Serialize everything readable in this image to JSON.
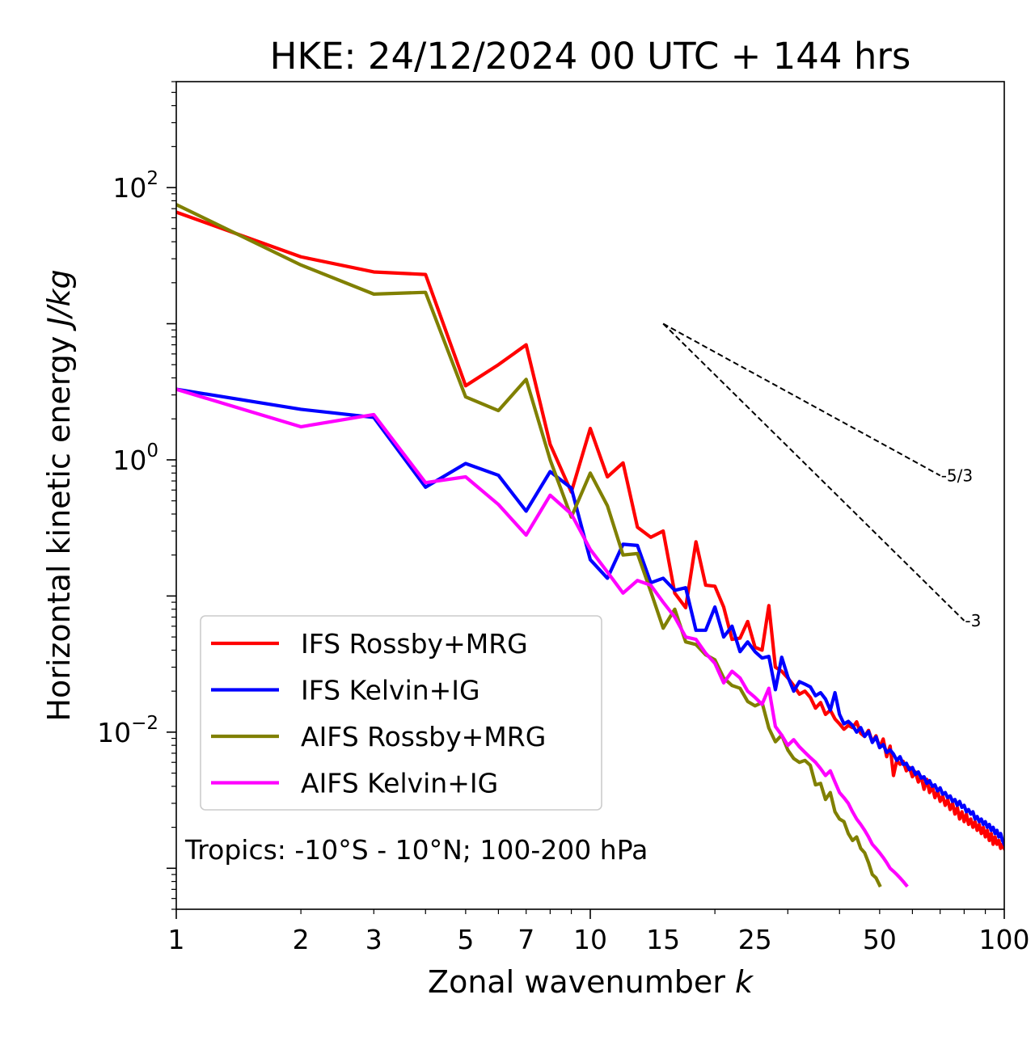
{
  "chart_data": {
    "type": "line",
    "title": "HKE: 24/12/2024 00 UTC + 144 hrs",
    "xlabel": "Zonal wavenumber k",
    "xlabel_main": "Zonal wavenumber ",
    "xlabel_var": "k",
    "ylabel": "Horizontal kinetic energy J/kg",
    "ylabel_main": "Horizontal kinetic energy ",
    "ylabel_unit": "J/kg",
    "xscale": "log",
    "yscale": "log",
    "xlim": [
      1,
      100
    ],
    "ylim": [
      0.0005,
      600
    ],
    "x_ticks": [
      1,
      2,
      3,
      5,
      7,
      10,
      15,
      25,
      50,
      100
    ],
    "x_tick_labels": [
      "1",
      "2",
      "3",
      "5",
      "7",
      "10",
      "15",
      "25",
      "50",
      "100"
    ],
    "y_ticks": [
      0.01,
      1,
      100
    ],
    "y_tick_labels": [
      {
        "base": "10",
        "exp": "−2"
      },
      {
        "base": "10",
        "exp": "0"
      },
      {
        "base": "10",
        "exp": "2"
      }
    ],
    "annotation": "Tropics: -10°S - 10°N; 100-200 hPa",
    "legend_position": "lower-left",
    "reference_lines": [
      {
        "label": "-5/3",
        "slope": -1.6667,
        "x_start": 15,
        "x_end": 70,
        "y_start": 10
      },
      {
        "label": "-3",
        "slope": -3,
        "x_start": 15,
        "x_end": 80,
        "y_start": 10
      }
    ],
    "series": [
      {
        "name": "IFS Rossby+MRG",
        "color": "#ff0000",
        "x": [
          1,
          2,
          3,
          4,
          5,
          6,
          7,
          8,
          9,
          10,
          11,
          12,
          13,
          14,
          15,
          16,
          17,
          18,
          19,
          20,
          21,
          22,
          23,
          24,
          25,
          26,
          27,
          28,
          29,
          30,
          31,
          32,
          33,
          34,
          35,
          36,
          37,
          38,
          39,
          40,
          41,
          42,
          43,
          44,
          45,
          46,
          47,
          48,
          49,
          50,
          51,
          52,
          53,
          54,
          55,
          56,
          57,
          58,
          59,
          60,
          61,
          62,
          63,
          64,
          65,
          66,
          67,
          68,
          69,
          70,
          71,
          72,
          73,
          74,
          75,
          76,
          77,
          78,
          79,
          80,
          81,
          82,
          83,
          84,
          85,
          86,
          87,
          88,
          89,
          90,
          91,
          92,
          93,
          94,
          95,
          96,
          97,
          98,
          99,
          100
        ],
        "y": [
          66,
          31,
          24,
          23,
          3.5,
          5,
          7,
          1.3,
          0.58,
          1.7,
          0.75,
          0.95,
          0.32,
          0.27,
          0.3,
          0.105,
          0.082,
          0.25,
          0.12,
          0.118,
          0.083,
          0.048,
          0.049,
          0.065,
          0.042,
          0.04,
          0.085,
          0.03,
          0.028,
          0.025,
          0.022,
          0.019,
          0.02,
          0.018,
          0.015,
          0.0165,
          0.0135,
          0.0145,
          0.0125,
          0.0115,
          0.0105,
          0.0112,
          0.0108,
          0.0119,
          0.0098,
          0.0093,
          0.0103,
          0.0085,
          0.0094,
          0.0077,
          0.0089,
          0.0066,
          0.0079,
          0.0048,
          0.0062,
          0.0058,
          0.0061,
          0.0052,
          0.0055,
          0.0047,
          0.0051,
          0.0043,
          0.0047,
          0.0038,
          0.0045,
          0.0036,
          0.004,
          0.0033,
          0.0037,
          0.0031,
          0.0034,
          0.0029,
          0.0032,
          0.0027,
          0.003,
          0.0025,
          0.0028,
          0.0023,
          0.0026,
          0.0022,
          0.0025,
          0.0021,
          0.0023,
          0.002,
          0.0022,
          0.0019,
          0.0021,
          0.0018,
          0.002,
          0.0017,
          0.0019,
          0.0016,
          0.0018,
          0.0015,
          0.0017,
          0.0015,
          0.0016,
          0.0014,
          0.0015,
          0.0014
        ]
      },
      {
        "name": "IFS Kelvin+IG",
        "color": "#0000ff",
        "x": [
          1,
          2,
          3,
          4,
          5,
          6,
          7,
          8,
          9,
          10,
          11,
          12,
          13,
          14,
          15,
          16,
          17,
          18,
          19,
          20,
          21,
          22,
          23,
          24,
          25,
          26,
          27,
          28,
          29,
          30,
          31,
          32,
          33,
          34,
          35,
          36,
          37,
          38,
          39,
          40,
          41,
          42,
          43,
          44,
          45,
          46,
          47,
          48,
          49,
          50,
          51,
          52,
          53,
          54,
          55,
          56,
          57,
          58,
          59,
          60,
          61,
          62,
          63,
          64,
          65,
          66,
          67,
          68,
          69,
          70,
          71,
          72,
          73,
          74,
          75,
          76,
          77,
          78,
          79,
          80,
          81,
          82,
          83,
          84,
          85,
          86,
          87,
          88,
          89,
          90,
          91,
          92,
          93,
          94,
          95,
          96,
          97,
          98,
          99,
          100
        ],
        "y": [
          3.3,
          2.35,
          2.05,
          0.63,
          0.94,
          0.77,
          0.42,
          0.82,
          0.62,
          0.185,
          0.135,
          0.24,
          0.235,
          0.125,
          0.135,
          0.11,
          0.115,
          0.056,
          0.056,
          0.083,
          0.05,
          0.06,
          0.039,
          0.046,
          0.039,
          0.035,
          0.036,
          0.0205,
          0.0355,
          0.0255,
          0.02,
          0.0235,
          0.0225,
          0.0215,
          0.0185,
          0.0195,
          0.0175,
          0.0145,
          0.0195,
          0.0135,
          0.0115,
          0.012,
          0.0112,
          0.01,
          0.0108,
          0.0093,
          0.0101,
          0.0084,
          0.0092,
          0.0077,
          0.0081,
          0.0071,
          0.0074,
          0.0069,
          0.0062,
          0.0066,
          0.0058,
          0.0059,
          0.0053,
          0.0055,
          0.0049,
          0.0051,
          0.0046,
          0.0047,
          0.0042,
          0.0044,
          0.004,
          0.0041,
          0.0037,
          0.0039,
          0.0035,
          0.0036,
          0.0033,
          0.0034,
          0.0031,
          0.0032,
          0.0029,
          0.0031,
          0.0028,
          0.0029,
          0.0026,
          0.0027,
          0.0025,
          0.0026,
          0.0023,
          0.0024,
          0.0022,
          0.0023,
          0.0021,
          0.0022,
          0.002,
          0.0021,
          0.0019,
          0.002,
          0.0018,
          0.0019,
          0.0017,
          0.0018,
          0.0016,
          0.0015
        ]
      },
      {
        "name": "AIFS Rossby+MRG",
        "color": "#808000",
        "x": [
          1,
          2,
          3,
          4,
          5,
          6,
          7,
          8,
          9,
          10,
          11,
          12,
          13,
          14,
          15,
          16,
          17,
          18,
          19,
          20,
          21,
          22,
          23,
          24,
          25,
          26,
          27,
          28,
          29,
          30,
          31,
          32,
          33,
          34,
          35,
          36,
          37,
          38,
          39,
          40,
          41,
          42,
          43,
          44,
          45,
          46,
          47,
          48,
          49,
          50
        ],
        "y": [
          75,
          27,
          16.5,
          17,
          2.9,
          2.3,
          3.9,
          1.0,
          0.38,
          0.8,
          0.46,
          0.2,
          0.205,
          0.108,
          0.058,
          0.08,
          0.046,
          0.044,
          0.037,
          0.034,
          0.025,
          0.022,
          0.021,
          0.0168,
          0.0156,
          0.0165,
          0.0107,
          0.0085,
          0.0095,
          0.0074,
          0.0064,
          0.006,
          0.0062,
          0.0057,
          0.0041,
          0.0042,
          0.0032,
          0.0036,
          0.0026,
          0.0023,
          0.0022,
          0.0018,
          0.0016,
          0.0017,
          0.0014,
          0.0013,
          0.0011,
          0.0009,
          0.00085,
          0.00075
        ]
      },
      {
        "name": "AIFS Kelvin+IG",
        "color": "#ff00ff",
        "x": [
          1,
          2,
          3,
          4,
          5,
          6,
          7,
          8,
          9,
          10,
          11,
          12,
          13,
          14,
          15,
          16,
          17,
          18,
          19,
          20,
          21,
          22,
          23,
          24,
          25,
          26,
          27,
          28,
          29,
          30,
          31,
          32,
          33,
          34,
          35,
          36,
          37,
          38,
          39,
          40,
          41,
          42,
          43,
          44,
          45,
          46,
          47,
          48,
          49,
          50,
          51,
          52,
          53,
          54,
          55,
          56,
          57,
          58
        ],
        "y": [
          3.3,
          1.75,
          2.15,
          0.68,
          0.75,
          0.47,
          0.28,
          0.55,
          0.4,
          0.22,
          0.15,
          0.105,
          0.13,
          0.12,
          0.09,
          0.07,
          0.05,
          0.048,
          0.038,
          0.032,
          0.023,
          0.028,
          0.025,
          0.02,
          0.018,
          0.016,
          0.021,
          0.011,
          0.0095,
          0.008,
          0.0088,
          0.0078,
          0.0071,
          0.0065,
          0.006,
          0.0054,
          0.0048,
          0.0052,
          0.0043,
          0.0036,
          0.0033,
          0.003,
          0.0026,
          0.0023,
          0.0021,
          0.0019,
          0.0017,
          0.0015,
          0.0014,
          0.0013,
          0.0012,
          0.0011,
          0.001,
          0.00095,
          0.0009,
          0.00085,
          0.0008,
          0.00075
        ]
      }
    ]
  }
}
